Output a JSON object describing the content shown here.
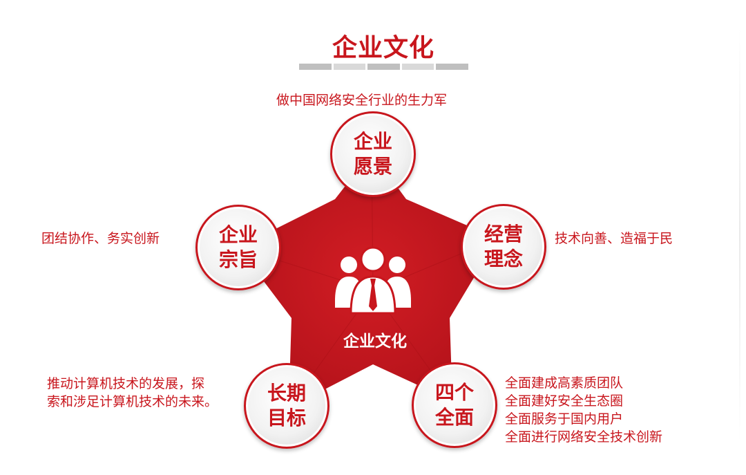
{
  "header": {
    "title": "企业文化"
  },
  "center": {
    "label": "企业文化"
  },
  "nodes": {
    "vision": {
      "line1": "企业",
      "line2": "愿景",
      "desc": "做中国网络安全行业的生力军"
    },
    "purpose": {
      "line1": "企业",
      "line2": "宗旨",
      "desc": "团结协作、务实创新"
    },
    "philosophy": {
      "line1": "经营",
      "line2": "理念",
      "desc": "技术向善、造福于民"
    },
    "goal": {
      "line1": "长期",
      "line2": "目标",
      "desc_lines": [
        "推动计算机技术的发展，探",
        "索和涉足计算机技术的未来。"
      ]
    },
    "four": {
      "line1": "四个",
      "line2": "全面",
      "desc_lines": [
        "全面建成高素质团队",
        "全面建好安全生态圈",
        "全面服务于国内用户",
        "全面进行网络安全技术创新"
      ]
    }
  },
  "colors": {
    "accent": "#c8161d",
    "star_dark": "#a80f15"
  }
}
